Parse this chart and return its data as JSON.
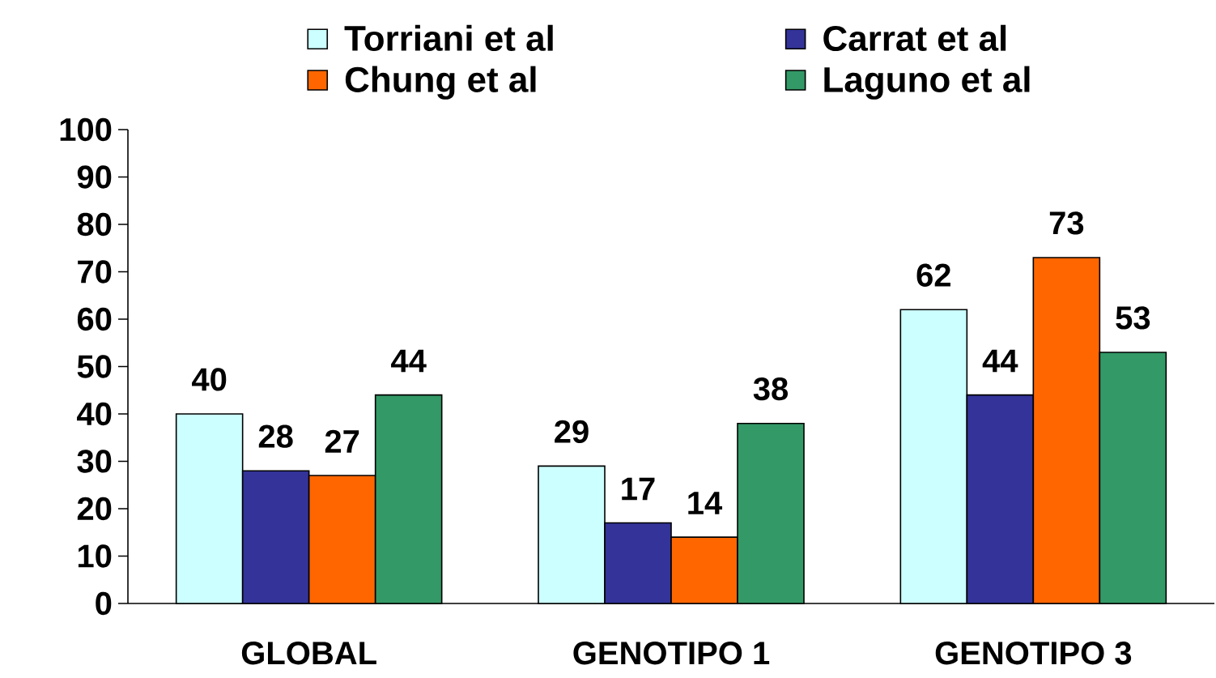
{
  "chart_data": {
    "type": "bar",
    "categories": [
      "GLOBAL",
      "GENOTIPO 1",
      "GENOTIPO 3"
    ],
    "series": [
      {
        "name": "Torriani et al",
        "color": "#ccffff",
        "values": [
          40,
          29,
          62
        ]
      },
      {
        "name": "Carrat et al",
        "color": "#333399",
        "values": [
          28,
          17,
          44
        ]
      },
      {
        "name": "Chung et al",
        "color": "#ff6600",
        "values": [
          27,
          14,
          73
        ]
      },
      {
        "name": "Laguno et al",
        "color": "#339966",
        "values": [
          44,
          38,
          53
        ]
      }
    ],
    "ylim": [
      0,
      100
    ],
    "yticks": [
      0,
      10,
      20,
      30,
      40,
      50,
      60,
      70,
      80,
      90,
      100
    ],
    "data_labels": true,
    "legend": "top",
    "grid": false
  }
}
